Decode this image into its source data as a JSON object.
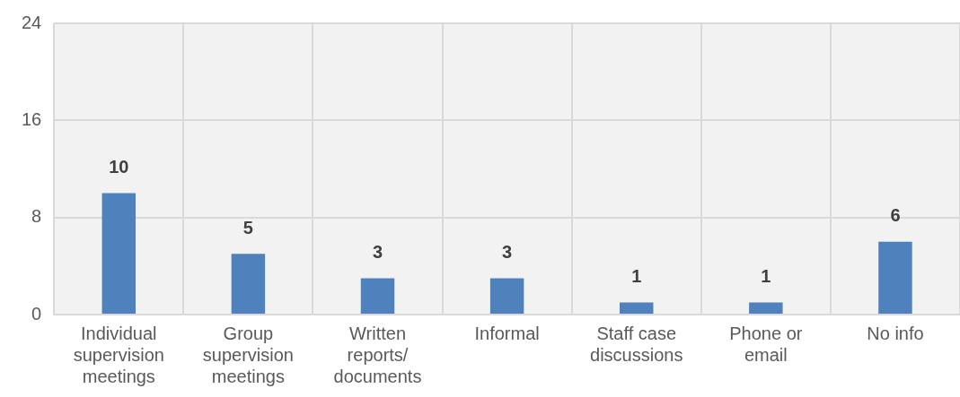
{
  "chart_data": {
    "type": "bar",
    "categories": [
      "Individual supervision meetings",
      "Group supervision meetings",
      "Written reports/ documents",
      "Informal",
      "Staff case discussions",
      "Phone or email",
      "No info"
    ],
    "values": [
      10,
      5,
      3,
      3,
      1,
      1,
      6
    ],
    "color": "#4f81bd",
    "ylim": [
      0,
      24
    ],
    "yticks": [
      0,
      8,
      16,
      24
    ],
    "grid": true,
    "data_labels": true
  }
}
